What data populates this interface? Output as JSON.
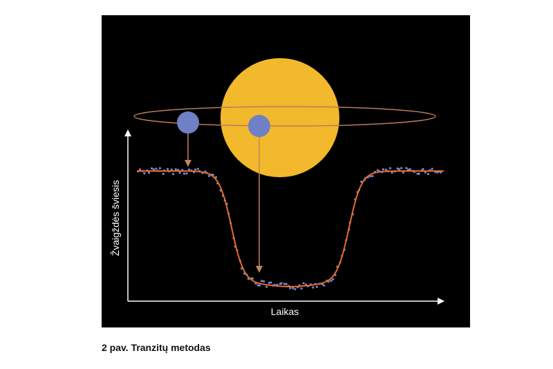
{
  "figure": {
    "y_axis_label": "Žvaigždės šviesis",
    "x_axis_label": "Laikas"
  },
  "caption": "2 pav. Tranzitų metodas"
}
